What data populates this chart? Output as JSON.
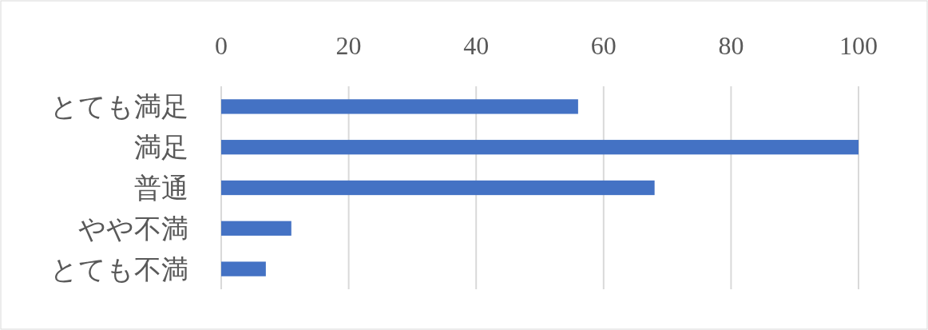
{
  "chart_data": {
    "type": "bar",
    "orientation": "horizontal",
    "categories": [
      "とても満足",
      "満足",
      "普通",
      "やや不満",
      "とても不満"
    ],
    "values": [
      56,
      100,
      68,
      11,
      7
    ],
    "color": "#4472c4",
    "xlim": [
      0,
      100
    ],
    "xticks": [
      0,
      20,
      40,
      60,
      80,
      100
    ],
    "grid": "x"
  }
}
